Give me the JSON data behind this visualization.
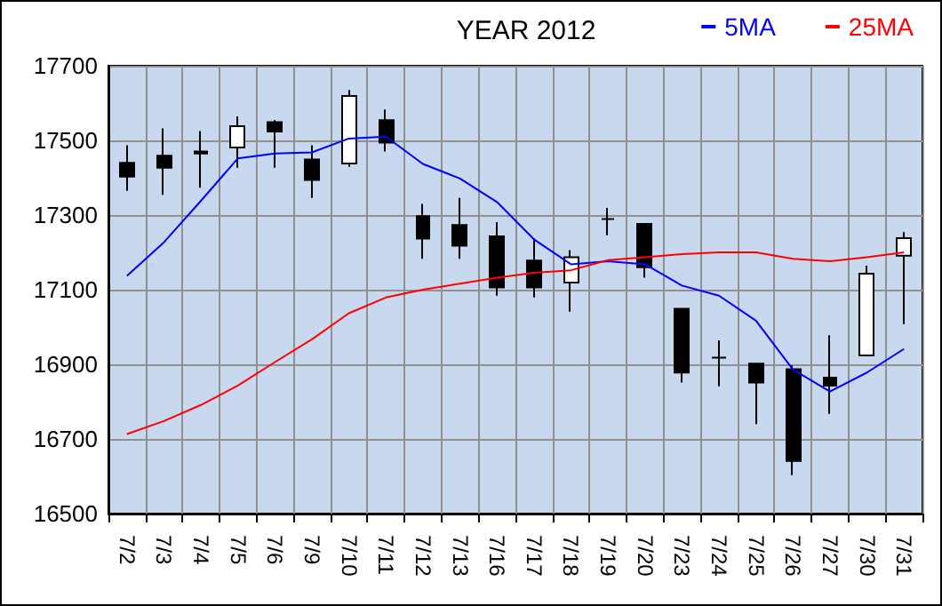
{
  "chart_data": {
    "type": "candlestick",
    "title": "YEAR 2012",
    "categories": [
      "7/2",
      "7/3",
      "7/4",
      "7/5",
      "7/6",
      "7/9",
      "7/10",
      "7/11",
      "7/12",
      "7/13",
      "7/16",
      "7/17",
      "7/18",
      "7/19",
      "7/20",
      "7/23",
      "7/24",
      "7/25",
      "7/26",
      "7/27",
      "7/30",
      "7/31"
    ],
    "ohlc": [
      [
        17440,
        17487,
        17365,
        17403
      ],
      [
        17459,
        17532,
        17354,
        17427
      ],
      [
        17470,
        17525,
        17373,
        17465
      ],
      [
        17481,
        17564,
        17427,
        17538
      ],
      [
        17549,
        17554,
        17427,
        17524
      ],
      [
        17449,
        17487,
        17346,
        17394
      ],
      [
        17438,
        17635,
        17429,
        17619
      ],
      [
        17554,
        17583,
        17470,
        17494
      ],
      [
        17297,
        17330,
        17183,
        17237
      ],
      [
        17273,
        17346,
        17183,
        17218
      ],
      [
        17243,
        17281,
        17084,
        17106
      ],
      [
        17178,
        17238,
        17079,
        17106
      ],
      [
        17119,
        17206,
        17041,
        17187
      ],
      [
        17289,
        17319,
        17246,
        17289
      ],
      [
        17276,
        17276,
        17132,
        17160
      ],
      [
        17049,
        17049,
        16851,
        16878
      ],
      [
        16918,
        16964,
        16841,
        16918
      ],
      [
        16902,
        16902,
        16740,
        16851
      ],
      [
        16887,
        16897,
        16603,
        16641
      ],
      [
        16864,
        16978,
        16767,
        16843
      ],
      [
        16924,
        17164,
        16924,
        17143
      ],
      [
        17191,
        17254,
        17008,
        17238
      ]
    ],
    "series": [
      {
        "name": "5MA",
        "type": "line",
        "color": "#0000ff",
        "values": [
          17137,
          17227,
          17338,
          17452,
          17465,
          17468,
          17505,
          17510,
          17437,
          17398,
          17335,
          17235,
          17168,
          17176,
          17168,
          17111,
          17084,
          17017,
          16886,
          16827,
          16878,
          16941
        ]
      },
      {
        "name": "25MA",
        "type": "line",
        "color": "#ff0000",
        "values": [
          16713,
          16748,
          16791,
          16843,
          16906,
          16967,
          17037,
          17079,
          17100,
          17116,
          17132,
          17145,
          17152,
          17179,
          17187,
          17195,
          17200,
          17200,
          17183,
          17176,
          17187,
          17200
        ]
      }
    ],
    "ylim": [
      16500,
      17700
    ],
    "yticks": [
      16500,
      16700,
      16900,
      17100,
      17300,
      17500,
      17700
    ],
    "grid": true,
    "legend": "top right",
    "marker": "none",
    "line_style": "solid"
  }
}
